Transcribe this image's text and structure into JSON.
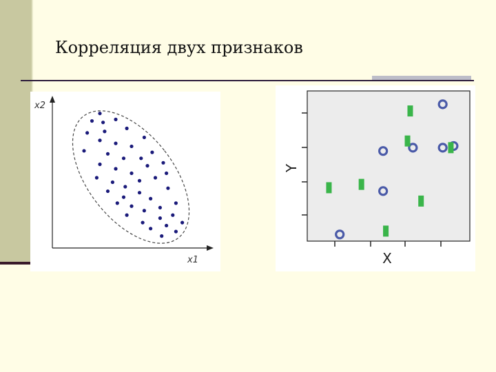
{
  "slide": {
    "title": "Корреляция двух признаков"
  },
  "chart_data": [
    {
      "type": "scatter",
      "xlabel": "x1",
      "ylabel": "x2",
      "grid": false,
      "annotations": [
        "dashed ellipse enclosing all points"
      ],
      "marker_color": "#1a1a7a",
      "points": [
        [
          0.3,
          0.9
        ],
        [
          0.25,
          0.85
        ],
        [
          0.32,
          0.84
        ],
        [
          0.4,
          0.86
        ],
        [
          0.22,
          0.77
        ],
        [
          0.33,
          0.78
        ],
        [
          0.47,
          0.8
        ],
        [
          0.3,
          0.72
        ],
        [
          0.4,
          0.7
        ],
        [
          0.5,
          0.68
        ],
        [
          0.58,
          0.74
        ],
        [
          0.2,
          0.65
        ],
        [
          0.35,
          0.63
        ],
        [
          0.45,
          0.6
        ],
        [
          0.56,
          0.6
        ],
        [
          0.63,
          0.64
        ],
        [
          0.3,
          0.56
        ],
        [
          0.4,
          0.53
        ],
        [
          0.5,
          0.5
        ],
        [
          0.6,
          0.55
        ],
        [
          0.7,
          0.57
        ],
        [
          0.28,
          0.47
        ],
        [
          0.38,
          0.44
        ],
        [
          0.46,
          0.41
        ],
        [
          0.55,
          0.45
        ],
        [
          0.65,
          0.47
        ],
        [
          0.72,
          0.5
        ],
        [
          0.35,
          0.38
        ],
        [
          0.45,
          0.34
        ],
        [
          0.55,
          0.37
        ],
        [
          0.62,
          0.33
        ],
        [
          0.73,
          0.4
        ],
        [
          0.41,
          0.3
        ],
        [
          0.5,
          0.28
        ],
        [
          0.58,
          0.25
        ],
        [
          0.68,
          0.27
        ],
        [
          0.78,
          0.3
        ],
        [
          0.47,
          0.22
        ],
        [
          0.57,
          0.17
        ],
        [
          0.68,
          0.2
        ],
        [
          0.76,
          0.22
        ],
        [
          0.62,
          0.13
        ],
        [
          0.72,
          0.15
        ],
        [
          0.82,
          0.17
        ],
        [
          0.78,
          0.11
        ],
        [
          0.69,
          0.08
        ]
      ]
    },
    {
      "type": "scatter",
      "xlabel": "X",
      "ylabel": "Y",
      "grid": false,
      "series": [
        {
          "marker": "circle",
          "color": "#4a5aa8",
          "points": [
            [
              1.2,
              0.2
            ],
            [
              2.8,
              2.7
            ],
            [
              2.8,
              1.5
            ],
            [
              3.9,
              2.8
            ],
            [
              5.0,
              4.1
            ],
            [
              5.0,
              2.8
            ],
            [
              5.4,
              2.85
            ]
          ]
        },
        {
          "marker": "bar",
          "color": "#3ab54a",
          "points": [
            [
              0.8,
              1.6
            ],
            [
              2.0,
              1.7
            ],
            [
              2.9,
              0.3
            ],
            [
              3.7,
              3.0
            ],
            [
              3.8,
              3.9
            ],
            [
              4.2,
              1.2
            ],
            [
              5.3,
              2.8
            ]
          ]
        }
      ]
    }
  ]
}
